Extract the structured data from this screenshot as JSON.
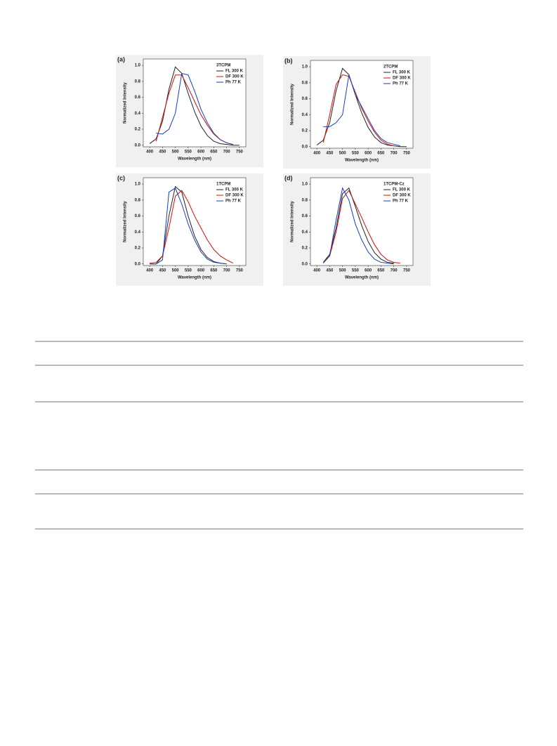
{
  "chart_data": [
    {
      "type": "line",
      "panel_label": "(a)",
      "legend_title": "3TCPM",
      "x_label": "Wavelength (nm)",
      "y_label": "Normalized Intensity",
      "x": [
        400,
        425,
        450,
        475,
        500,
        525,
        550,
        575,
        600,
        625,
        650,
        675,
        700,
        725,
        750
      ],
      "xlim": [
        375,
        775
      ],
      "xticks": [
        400,
        450,
        500,
        550,
        600,
        650,
        700,
        750
      ],
      "ylim": [
        -0.02,
        1.08
      ],
      "yticks": [
        {
          "value": 0,
          "label": "0.0"
        },
        0.2,
        0.4,
        0.6,
        0.8,
        {
          "value": 1,
          "label": "1.0"
        }
      ],
      "legend": "upper right",
      "series": [
        {
          "name": "FL 300 K",
          "color": "#222222",
          "values": [
            0.02,
            0.08,
            0.3,
            0.7,
            0.98,
            0.9,
            0.65,
            0.42,
            0.24,
            0.12,
            0.05,
            0.02,
            0.01,
            0,
            0
          ]
        },
        {
          "name": "DF 300 K",
          "color": "#cc1111",
          "values": [
            null,
            0.05,
            0.35,
            0.65,
            0.88,
            0.88,
            0.72,
            0.55,
            0.38,
            0.25,
            0.14,
            0.07,
            0.03,
            0.01,
            null
          ]
        },
        {
          "name": "Ph 77 K",
          "color": "#1a3fb0",
          "values": [
            null,
            0.15,
            0.14,
            0.2,
            0.4,
            0.9,
            0.88,
            0.68,
            0.45,
            0.28,
            0.15,
            0.07,
            0.03,
            0.01,
            null
          ]
        }
      ]
    },
    {
      "type": "line",
      "panel_label": "(b)",
      "legend_title": "2TCPM",
      "x_label": "Wavelength (nm)",
      "y_label": "Normalized Intensity",
      "x": [
        400,
        425,
        450,
        475,
        500,
        525,
        550,
        575,
        600,
        625,
        650,
        675,
        700,
        725,
        750
      ],
      "xlim": [
        375,
        775
      ],
      "xticks": [
        400,
        450,
        500,
        550,
        600,
        650,
        700,
        750
      ],
      "ylim": [
        -0.02,
        1.08
      ],
      "yticks": [
        {
          "value": 0,
          "label": "0.0"
        },
        0.2,
        0.4,
        0.6,
        0.8,
        {
          "value": 1,
          "label": "1.0"
        }
      ],
      "legend": "upper right",
      "series": [
        {
          "name": "FL 300 K",
          "color": "#222222",
          "values": [
            0.02,
            0.08,
            0.3,
            0.7,
            0.98,
            0.9,
            0.65,
            0.42,
            0.24,
            0.12,
            0.05,
            0.02,
            0.01,
            0,
            0
          ]
        },
        {
          "name": "DF 300 K",
          "color": "#cc1111",
          "values": [
            null,
            0.05,
            0.4,
            0.78,
            0.9,
            0.88,
            0.68,
            0.48,
            0.32,
            0.18,
            0.08,
            0.03,
            0.01,
            null,
            null
          ]
        },
        {
          "name": "Ph 77 K",
          "color": "#1a3fb0",
          "values": [
            null,
            0.25,
            0.25,
            0.3,
            0.4,
            0.9,
            0.65,
            0.5,
            0.35,
            0.2,
            0.1,
            0.05,
            0.03,
            0.01,
            null
          ]
        }
      ]
    },
    {
      "type": "line",
      "panel_label": "(c)",
      "legend_title": "1TCPM",
      "x_label": "Wavelength (nm)",
      "y_label": "Normalized Intensity",
      "x": [
        400,
        425,
        450,
        475,
        500,
        525,
        550,
        575,
        600,
        625,
        650,
        675,
        700,
        725,
        750
      ],
      "xlim": [
        375,
        775
      ],
      "xticks": [
        400,
        450,
        500,
        550,
        600,
        650,
        700,
        750
      ],
      "ylim": [
        -0.02,
        1.08
      ],
      "yticks": [
        {
          "value": 0,
          "label": "0.0"
        },
        0.2,
        0.4,
        0.6,
        0.8,
        {
          "value": 1,
          "label": "1.0"
        }
      ],
      "legend": "upper right",
      "series": [
        {
          "name": "FL 300 K",
          "color": "#222222",
          "values": [
            0,
            0,
            0.1,
            0.6,
            0.97,
            0.9,
            0.6,
            0.35,
            0.18,
            0.08,
            0.03,
            0.01,
            0,
            null,
            null
          ]
        },
        {
          "name": "DF 300 K",
          "color": "#cc1111",
          "values": [
            0.01,
            0.02,
            0.1,
            0.45,
            0.85,
            0.92,
            0.78,
            0.6,
            0.45,
            0.3,
            0.18,
            0.1,
            0.05,
            0.01,
            null
          ]
        },
        {
          "name": "Ph 77 K",
          "color": "#1a3fb0",
          "values": [
            0,
            0,
            0.05,
            0.9,
            0.95,
            0.75,
            0.5,
            0.3,
            0.15,
            0.06,
            0.02,
            0.01,
            0,
            null,
            null
          ]
        }
      ]
    },
    {
      "type": "line",
      "panel_label": "(d)",
      "legend_title": "1TCPM-Cz",
      "x_label": "Wavelength (nm)",
      "y_label": "Normalized Intensity",
      "x": [
        400,
        425,
        450,
        475,
        500,
        525,
        550,
        575,
        600,
        625,
        650,
        675,
        700,
        725,
        750
      ],
      "xlim": [
        375,
        775
      ],
      "xticks": [
        400,
        450,
        500,
        550,
        600,
        650,
        700,
        750
      ],
      "ylim": [
        -0.02,
        1.08
      ],
      "yticks": [
        {
          "value": 0,
          "label": "0.0"
        },
        0.2,
        0.4,
        0.6,
        0.8,
        {
          "value": 1,
          "label": "1.0"
        }
      ],
      "legend": "upper right",
      "series": [
        {
          "name": "FL 300 K",
          "color": "#222222",
          "values": [
            null,
            0.02,
            0.12,
            0.45,
            0.88,
            0.95,
            0.72,
            0.48,
            0.28,
            0.14,
            0.06,
            0.02,
            0.01,
            null,
            null
          ]
        },
        {
          "name": "DF 300 K",
          "color": "#cc1111",
          "values": [
            null,
            0.02,
            0.1,
            0.4,
            0.82,
            0.92,
            0.75,
            0.58,
            0.4,
            0.24,
            0.12,
            0.05,
            0.02,
            0.01,
            null
          ]
        },
        {
          "name": "Ph 77 K",
          "color": "#1a3fb0",
          "values": [
            null,
            0.01,
            0.1,
            0.55,
            0.95,
            0.8,
            0.5,
            0.3,
            0.15,
            0.06,
            0.02,
            0.01,
            0,
            null,
            null
          ]
        }
      ]
    }
  ]
}
